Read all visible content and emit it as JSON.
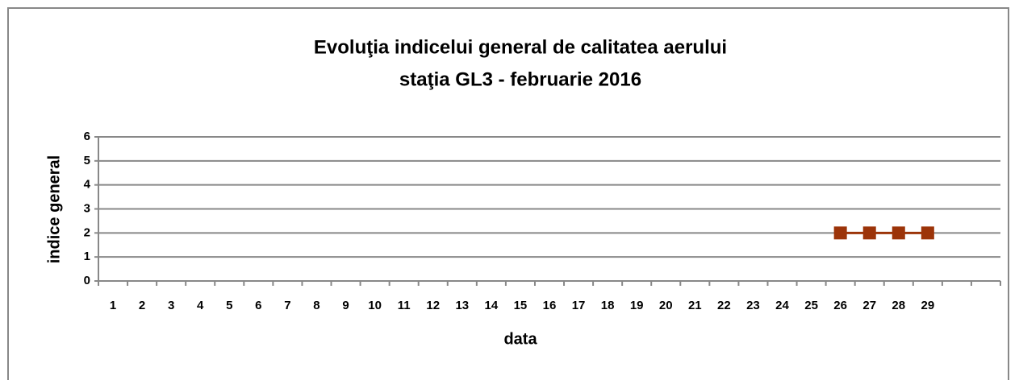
{
  "chart_data": {
    "type": "line",
    "title": [
      "Evoluţia indicelui general de calitatea aerului",
      "staţia GL3 - februarie 2016"
    ],
    "x_label": "data",
    "y_label": "indice general",
    "categories": [
      "1",
      "2",
      "3",
      "4",
      "5",
      "6",
      "7",
      "8",
      "9",
      "10",
      "11",
      "12",
      "13",
      "14",
      "15",
      "16",
      "17",
      "18",
      "19",
      "20",
      "21",
      "22",
      "23",
      "24",
      "25",
      "26",
      "27",
      "28",
      "29",
      null,
      null
    ],
    "values": [
      null,
      null,
      null,
      null,
      null,
      null,
      null,
      null,
      null,
      null,
      null,
      null,
      null,
      null,
      null,
      null,
      null,
      null,
      null,
      null,
      null,
      null,
      null,
      null,
      null,
      2,
      2,
      2,
      2,
      null,
      null
    ],
    "color": "#9c3409",
    "ylim": [
      0,
      6
    ],
    "yticks": [
      0,
      1,
      2,
      3,
      4,
      5,
      6
    ],
    "grid": true
  }
}
